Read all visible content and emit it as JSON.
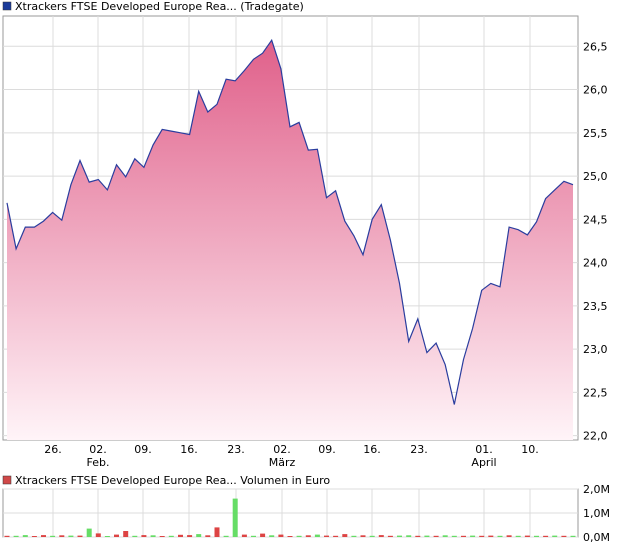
{
  "chart_data": [
    {
      "type": "area",
      "title": "Xtrackers FTSE Developed Europe Rea... (Tradegate)",
      "legend_color": "#1a3a9a",
      "line_color": "#2a3d9e",
      "fill_top_color": "#e0608a",
      "fill_bottom_color": "#fff4f8",
      "grid": true,
      "ylim": [
        21.95,
        26.85
      ],
      "y_ticks": [
        "22,0",
        "22,5",
        "23,0",
        "23,5",
        "24,0",
        "24,5",
        "25,0",
        "25,5",
        "26,0",
        "26,5"
      ],
      "y_tick_values": [
        22.0,
        22.5,
        23.0,
        23.5,
        24.0,
        24.5,
        25.0,
        25.5,
        26.0,
        26.5
      ],
      "x_labels": [
        {
          "label": "26.",
          "sub": ""
        },
        {
          "label": "02.",
          "sub": "Feb."
        },
        {
          "label": "09.",
          "sub": ""
        },
        {
          "label": "16.",
          "sub": ""
        },
        {
          "label": "23.",
          "sub": ""
        },
        {
          "label": "02.",
          "sub": "März"
        },
        {
          "label": "09.",
          "sub": ""
        },
        {
          "label": "16.",
          "sub": ""
        },
        {
          "label": "23.",
          "sub": ""
        },
        {
          "label": "01.",
          "sub": "April"
        },
        {
          "label": "10.",
          "sub": ""
        }
      ],
      "values": [
        24.69,
        24.16,
        24.41,
        24.41,
        24.48,
        24.58,
        24.49,
        24.9,
        25.18,
        24.93,
        24.96,
        24.84,
        25.13,
        24.99,
        25.2,
        25.1,
        25.36,
        25.54,
        25.52,
        25.5,
        25.48,
        25.98,
        25.74,
        25.83,
        26.12,
        26.1,
        26.22,
        26.35,
        26.42,
        26.57,
        26.24,
        25.57,
        25.62,
        25.3,
        25.31,
        24.75,
        24.83,
        24.48,
        24.31,
        24.09,
        24.5,
        24.67,
        24.26,
        23.76,
        23.09,
        23.35,
        22.96,
        23.07,
        22.82,
        22.36,
        22.88,
        23.24,
        23.68,
        23.76,
        23.72,
        24.41,
        24.38,
        24.32,
        24.47,
        24.74,
        24.84,
        24.94,
        24.9
      ]
    },
    {
      "type": "bar",
      "title": "Xtrackers FTSE Developed Europe Rea... Volumen in Euro",
      "legend_color": "#d04848",
      "up_color": "#66dd66",
      "down_color": "#dd4444",
      "grid": true,
      "ylim": [
        0,
        2.0
      ],
      "y_ticks": [
        "0,0M",
        "1,0M",
        "2,0M"
      ],
      "y_tick_values": [
        0,
        1.0,
        2.0
      ],
      "values_millions": [
        0.05,
        0.05,
        0.08,
        0.04,
        0.08,
        0.05,
        0.07,
        0.06,
        0.06,
        0.35,
        0.15,
        0.04,
        0.1,
        0.25,
        0.05,
        0.08,
        0.07,
        0.04,
        0.05,
        0.09,
        0.08,
        0.12,
        0.07,
        0.4,
        0.05,
        1.6,
        0.1,
        0.05,
        0.14,
        0.07,
        0.1,
        0.04,
        0.05,
        0.07,
        0.1,
        0.06,
        0.05,
        0.12,
        0.05,
        0.07,
        0.05,
        0.08,
        0.05,
        0.06,
        0.07,
        0.05,
        0.06,
        0.05,
        0.07,
        0.05,
        0.05,
        0.06,
        0.05,
        0.06,
        0.05,
        0.07,
        0.05,
        0.06,
        0.05,
        0.05,
        0.06,
        0.05,
        0.05
      ],
      "directions": [
        "d",
        "u",
        "u",
        "d",
        "d",
        "u",
        "d",
        "u",
        "d",
        "u",
        "d",
        "u",
        "d",
        "d",
        "u",
        "d",
        "u",
        "d",
        "u",
        "d",
        "d",
        "u",
        "d",
        "d",
        "u",
        "u",
        "d",
        "u",
        "d",
        "u",
        "d",
        "d",
        "u",
        "d",
        "u",
        "d",
        "d",
        "d",
        "u",
        "d",
        "u",
        "d",
        "d",
        "u",
        "u",
        "d",
        "u",
        "d",
        "u",
        "u",
        "d",
        "u",
        "d",
        "d",
        "u",
        "d",
        "u",
        "d",
        "u",
        "d",
        "u",
        "d",
        "u"
      ]
    }
  ]
}
